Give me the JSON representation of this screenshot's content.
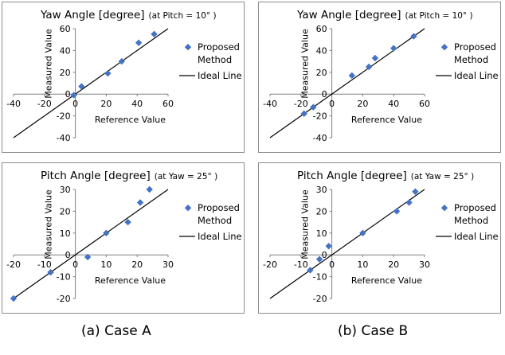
{
  "captions": [
    "(a)  Case A",
    "(b)  Case B"
  ],
  "legend": {
    "marker_label_line1": "Proposed",
    "marker_label_line2": "Method",
    "line_label": "Ideal Line"
  },
  "colors": {
    "marker": "#4472c4",
    "line": "#000000",
    "border": "#8c8c8c"
  },
  "chart_data": [
    {
      "type": "scatter",
      "title": "Yaw Angle [degree]",
      "title_note": "(at Pitch = 10°  )",
      "xlabel": "Reference Value",
      "ylabel": "Measured Value",
      "xlim": [
        -40,
        60
      ],
      "ylim": [
        -40,
        60
      ],
      "xticks": [
        -40,
        -20,
        0,
        20,
        40,
        60
      ],
      "yticks": [
        -40,
        -20,
        0,
        20,
        40,
        60
      ],
      "ideal_line": {
        "x": [
          -40,
          60
        ],
        "y": [
          -40,
          60
        ]
      },
      "series": [
        {
          "name": "Proposed Method",
          "x": [
            -1,
            4,
            21,
            30,
            41,
            51
          ],
          "y": [
            -1,
            7,
            19,
            30,
            47,
            55
          ]
        }
      ]
    },
    {
      "type": "scatter",
      "title": "Yaw Angle [degree]",
      "title_note": "(at Pitch = 10°  )",
      "xlabel": "Reference Value",
      "ylabel": "Measured Value",
      "xlim": [
        -40,
        60
      ],
      "ylim": [
        -40,
        60
      ],
      "xticks": [
        -40,
        -20,
        0,
        20,
        40,
        60
      ],
      "yticks": [
        -40,
        -20,
        0,
        20,
        40,
        60
      ],
      "ideal_line": {
        "x": [
          -40,
          60
        ],
        "y": [
          -40,
          60
        ]
      },
      "series": [
        {
          "name": "Proposed Method",
          "x": [
            -18,
            -12,
            13,
            24,
            28,
            40,
            53
          ],
          "y": [
            -18,
            -12,
            17,
            25,
            33,
            42,
            53
          ]
        }
      ]
    },
    {
      "type": "scatter",
      "title": "Pitch Angle [degree]",
      "title_note": "(at Yaw = 25°  )",
      "xlabel": "Reference Value",
      "ylabel": "Measured Value",
      "xlim": [
        -20,
        30
      ],
      "ylim": [
        -20,
        30
      ],
      "xticks": [
        -20,
        -10,
        0,
        10,
        20,
        30
      ],
      "yticks": [
        -20,
        -10,
        0,
        10,
        20,
        30
      ],
      "ideal_line": {
        "x": [
          -20,
          30
        ],
        "y": [
          -20,
          30
        ]
      },
      "series": [
        {
          "name": "Proposed Method",
          "x": [
            -20,
            -8,
            4,
            10,
            17,
            21,
            24
          ],
          "y": [
            -20,
            -8,
            -1,
            10,
            15,
            24,
            30
          ]
        }
      ]
    },
    {
      "type": "scatter",
      "title": "Pitch Angle [degree]",
      "title_note": "(at Yaw = 25°  )",
      "xlabel": "Reference Value",
      "ylabel": "Measured Value",
      "xlim": [
        -20,
        30
      ],
      "ylim": [
        -20,
        30
      ],
      "xticks": [
        -20,
        -10,
        0,
        10,
        20,
        30
      ],
      "yticks": [
        -20,
        -10,
        0,
        10,
        20,
        30
      ],
      "ideal_line": {
        "x": [
          -20,
          30
        ],
        "y": [
          -20,
          30
        ]
      },
      "series": [
        {
          "name": "Proposed Method",
          "x": [
            -7,
            -4,
            -1,
            10,
            21,
            25,
            27
          ],
          "y": [
            -7,
            -2,
            4,
            10,
            20,
            24,
            29
          ]
        }
      ]
    }
  ]
}
